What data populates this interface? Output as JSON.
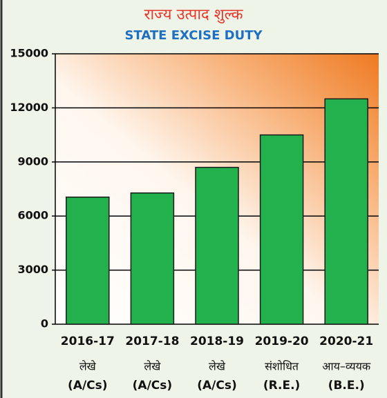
{
  "chart_data": {
    "type": "bar",
    "title": "राज्य उत्पाद शुल्क",
    "subtitle": "STATE EXCISE DUTY",
    "categories": [
      "2016-17",
      "2017-18",
      "2018-19",
      "2019-20",
      "2020-21"
    ],
    "sublabels": [
      [
        "लेखे",
        "(A/Cs)"
      ],
      [
        "लेखे",
        "(A/Cs)"
      ],
      [
        "लेखे",
        "(A/Cs)"
      ],
      [
        "संशोधित",
        "(R.E.)"
      ],
      [
        "आय–व्ययक",
        "(B.E.)"
      ]
    ],
    "values": [
      7050,
      7280,
      8700,
      10500,
      12500
    ],
    "color": "#22b14c",
    "ylim": [
      0,
      15000
    ],
    "yticks": [
      0,
      3000,
      6000,
      9000,
      12000,
      15000
    ],
    "grid": true
  }
}
